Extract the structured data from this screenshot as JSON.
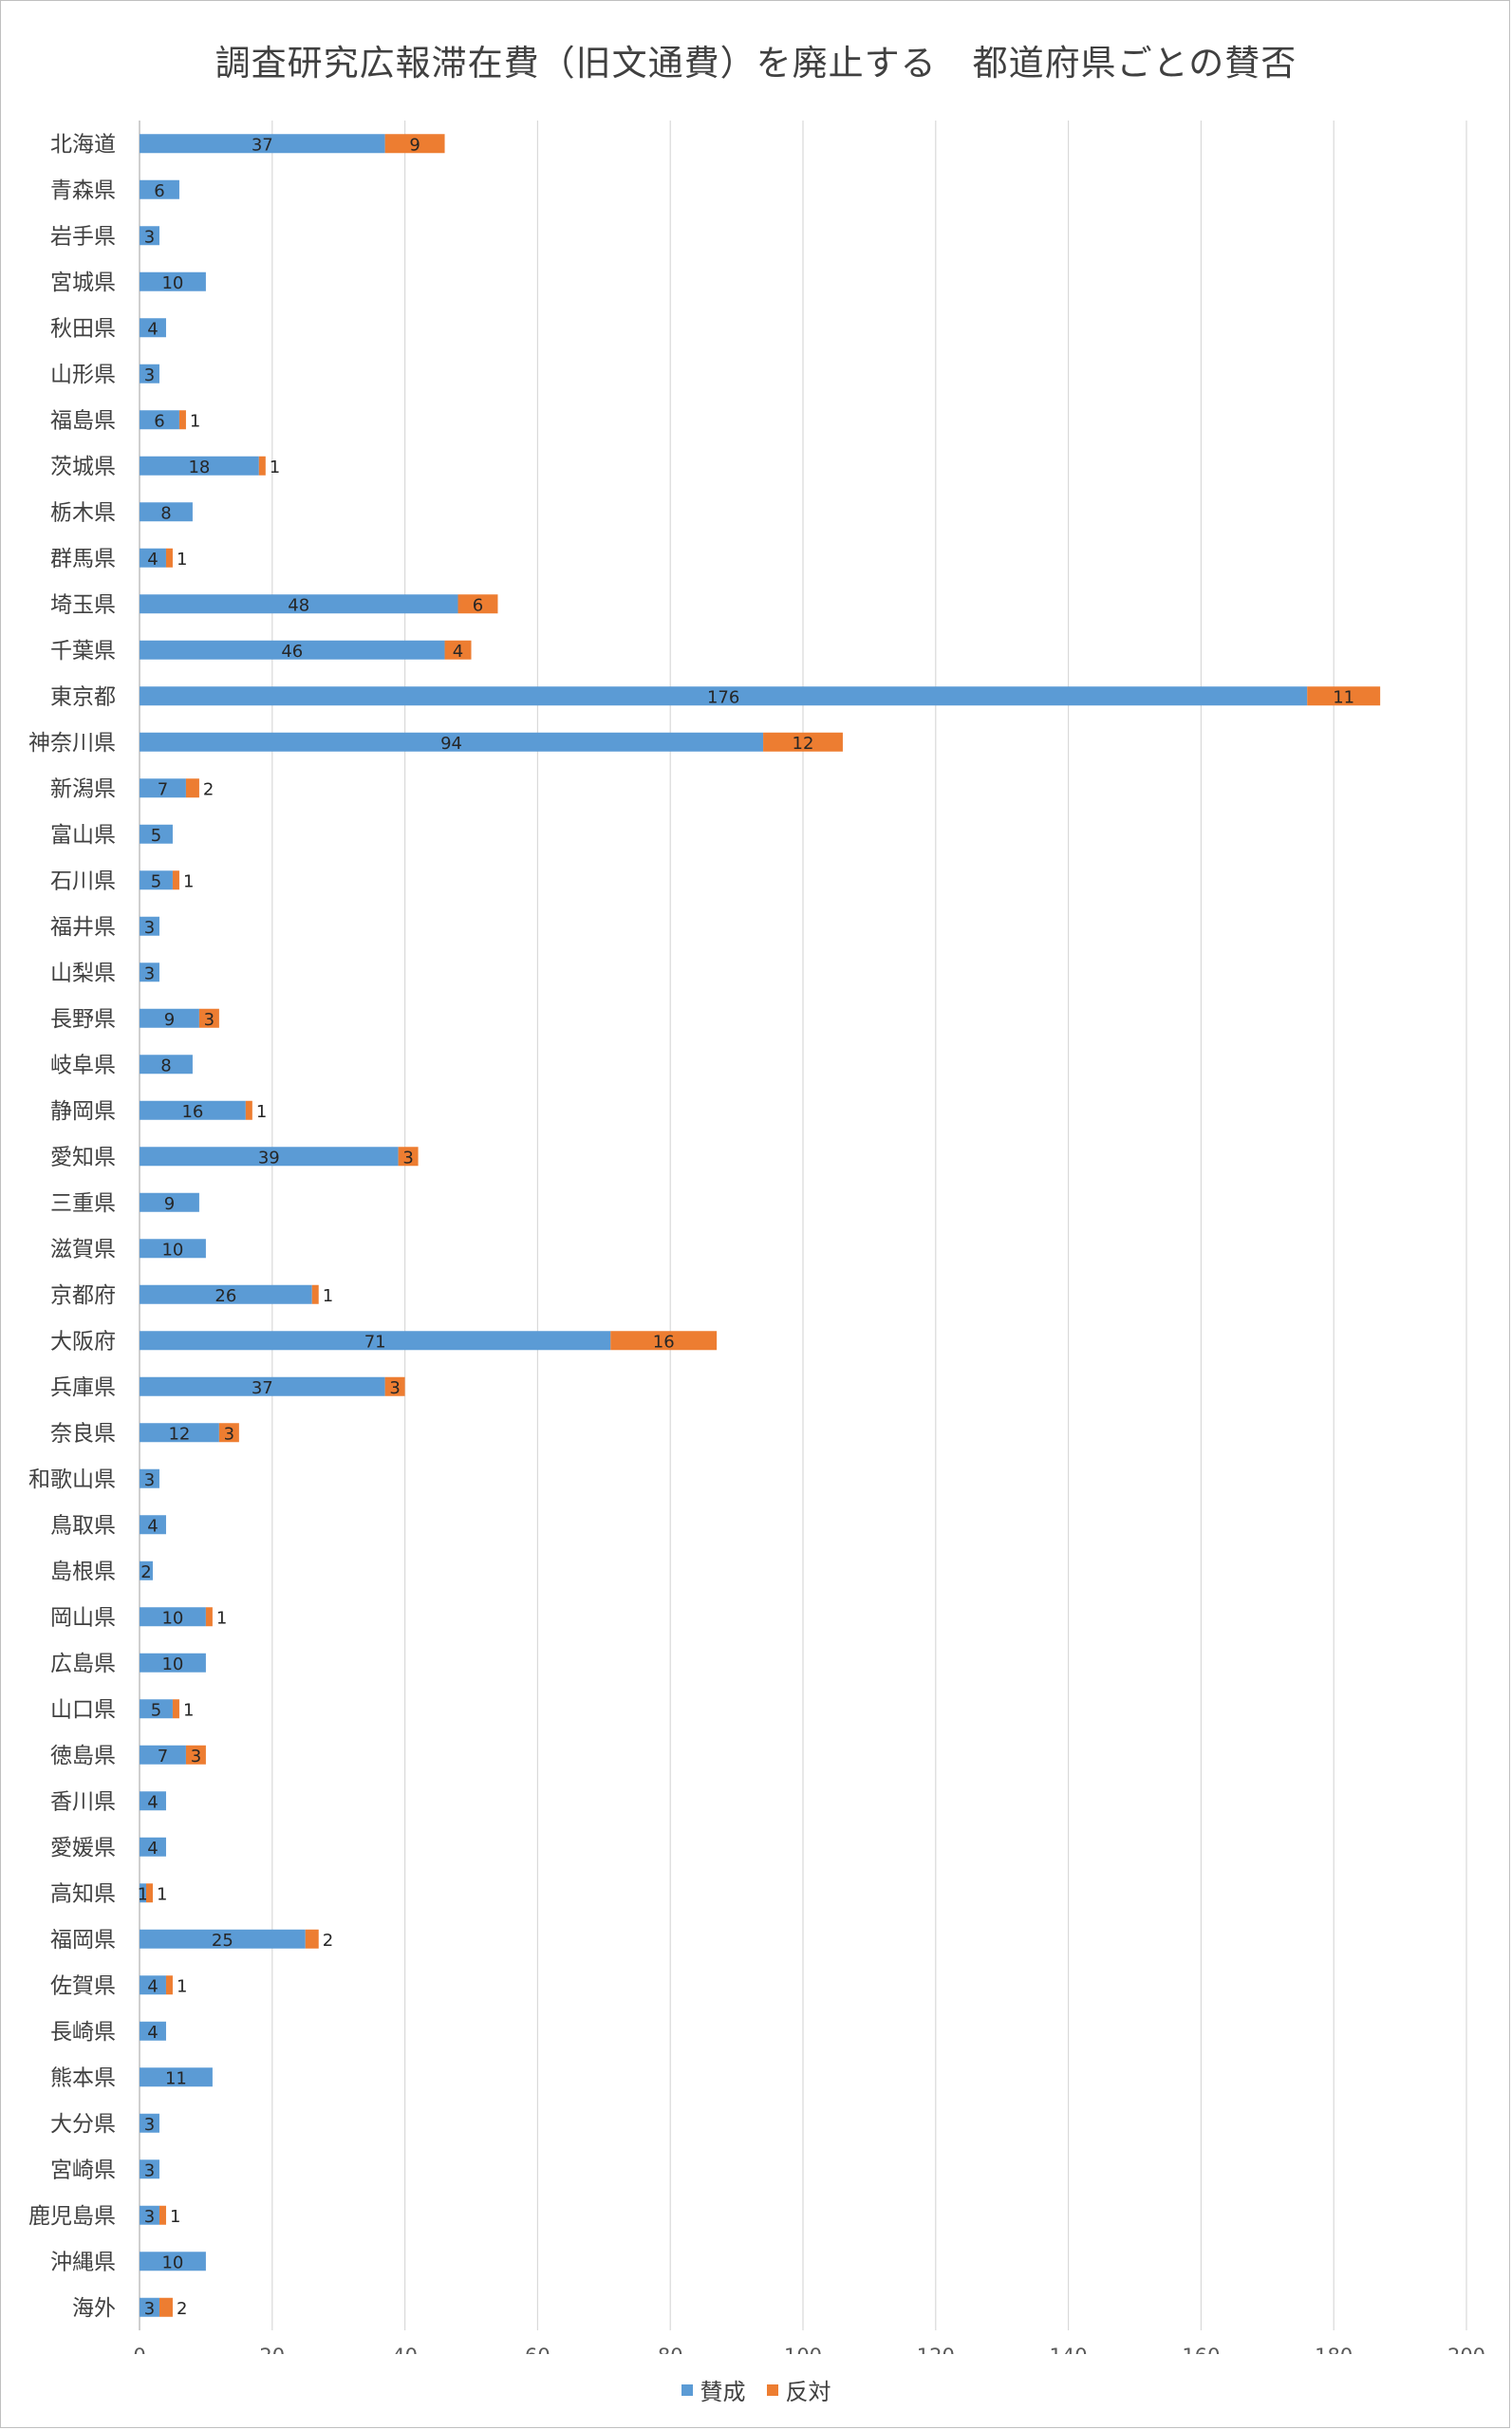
{
  "chart_data": {
    "type": "bar",
    "orientation": "horizontal",
    "stacked": true,
    "title": "調査研究広報滞在費（旧文通費）を廃止する　都道府県ごとの賛否",
    "xlim": [
      0,
      200
    ],
    "x_ticks": [
      0,
      20,
      40,
      60,
      80,
      100,
      120,
      140,
      160,
      180,
      200
    ],
    "grid": "vertical",
    "legend_position": "bottom",
    "categories": [
      "北海道",
      "青森県",
      "岩手県",
      "宮城県",
      "秋田県",
      "山形県",
      "福島県",
      "茨城県",
      "栃木県",
      "群馬県",
      "埼玉県",
      "千葉県",
      "東京都",
      "神奈川県",
      "新潟県",
      "富山県",
      "石川県",
      "福井県",
      "山梨県",
      "長野県",
      "岐阜県",
      "静岡県",
      "愛知県",
      "三重県",
      "滋賀県",
      "京都府",
      "大阪府",
      "兵庫県",
      "奈良県",
      "和歌山県",
      "鳥取県",
      "島根県",
      "岡山県",
      "広島県",
      "山口県",
      "徳島県",
      "香川県",
      "愛媛県",
      "高知県",
      "福岡県",
      "佐賀県",
      "長崎県",
      "熊本県",
      "大分県",
      "宮崎県",
      "鹿児島県",
      "沖縄県",
      "海外"
    ],
    "series": [
      {
        "name": "賛成",
        "color": "#5b9bd5",
        "values": [
          37,
          6,
          3,
          10,
          4,
          3,
          6,
          18,
          8,
          4,
          48,
          46,
          176,
          94,
          7,
          5,
          5,
          3,
          3,
          9,
          8,
          16,
          39,
          9,
          10,
          26,
          71,
          37,
          12,
          3,
          4,
          2,
          10,
          10,
          5,
          7,
          4,
          4,
          1,
          25,
          4,
          4,
          11,
          3,
          3,
          3,
          10,
          3
        ]
      },
      {
        "name": "反対",
        "color": "#ed7d31",
        "values": [
          9,
          0,
          0,
          0,
          0,
          0,
          1,
          1,
          0,
          1,
          6,
          4,
          11,
          12,
          2,
          0,
          1,
          0,
          0,
          3,
          0,
          1,
          3,
          0,
          0,
          1,
          16,
          3,
          3,
          0,
          0,
          0,
          1,
          0,
          1,
          3,
          0,
          0,
          1,
          2,
          1,
          0,
          0,
          0,
          0,
          1,
          0,
          2
        ]
      }
    ]
  }
}
